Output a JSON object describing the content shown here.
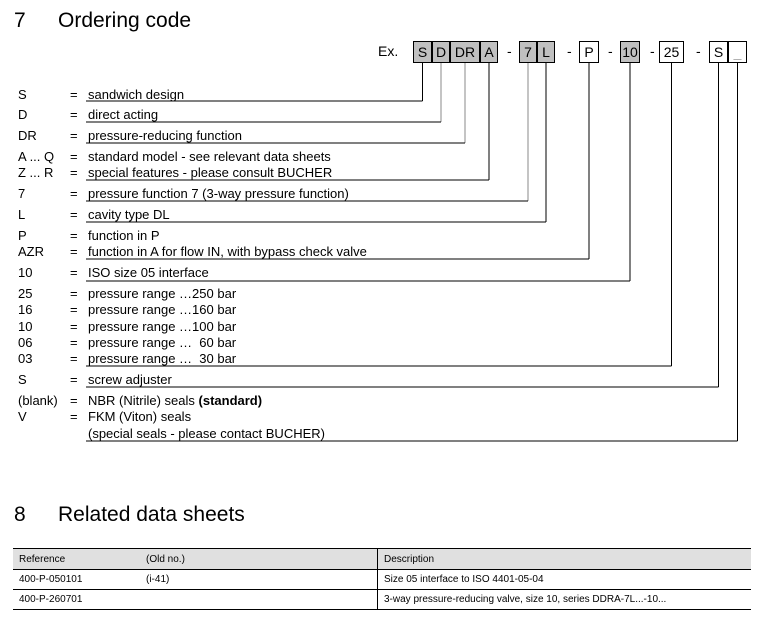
{
  "section7": {
    "number": "7",
    "title": "Ordering code"
  },
  "example": {
    "prefix": "Ex.",
    "boxes": [
      {
        "text": "S",
        "shaded": true
      },
      {
        "text": "D",
        "shaded": true
      },
      {
        "text": "DR",
        "shaded": true
      },
      {
        "text": "A",
        "shaded": true
      },
      {
        "text": "7",
        "shaded": true
      },
      {
        "text": "L",
        "shaded": true
      },
      {
        "text": "P",
        "shaded": false
      },
      {
        "text": "10",
        "shaded": true
      },
      {
        "text": "25",
        "shaded": false
      },
      {
        "text": "S",
        "shaded": false
      },
      {
        "text": "_",
        "shaded": false
      }
    ],
    "separator": "-"
  },
  "rows": [
    {
      "key": "S",
      "eq": "=",
      "desc": "sandwich design"
    },
    {
      "key": "D",
      "eq": "=",
      "desc": "direct acting"
    },
    {
      "key": "DR",
      "eq": "=",
      "desc": "pressure-reducing function"
    },
    {
      "key": "A ... Q",
      "eq": "=",
      "desc": "standard model - see relevant data sheets"
    },
    {
      "key": "Z ... R",
      "eq": "=",
      "desc": "special features - please consult BUCHER"
    },
    {
      "key": "7",
      "eq": "=",
      "desc": "pressure function 7 (3-way pressure function)"
    },
    {
      "key": "L",
      "eq": "=",
      "desc": "cavity type DL"
    },
    {
      "key": "P",
      "eq": "=",
      "desc": "function in P"
    },
    {
      "key": "AZR",
      "eq": "=",
      "desc": "function in A for flow IN, with bypass check valve"
    },
    {
      "key": "10",
      "eq": "=",
      "desc": "ISO size 05 interface"
    },
    {
      "key": "25",
      "eq": "=",
      "desc": "pressure range …250 bar"
    },
    {
      "key": "16",
      "eq": "=",
      "desc": "pressure range …160 bar"
    },
    {
      "key": "10",
      "eq": "=",
      "desc": "pressure range …100 bar"
    },
    {
      "key": "06",
      "eq": "=",
      "desc": "pressure range …  60 bar"
    },
    {
      "key": "03",
      "eq": "=",
      "desc": "pressure range …  30 bar"
    },
    {
      "key": "S",
      "eq": "=",
      "desc": "screw adjuster"
    },
    {
      "key": "(blank)",
      "eq": "=",
      "desc": "NBR (Nitrile) seals ",
      "desc_bold": "(standard)"
    },
    {
      "key": "V",
      "eq": "=",
      "desc": "FKM (Viton) seals"
    },
    {
      "key": "",
      "eq": "",
      "desc": "(special seals - please contact BUCHER)"
    }
  ],
  "section8": {
    "number": "8",
    "title": "Related data sheets"
  },
  "table": {
    "headers": [
      "Reference",
      "(Old no.)",
      "Description"
    ],
    "rows": [
      [
        "400-P-050101",
        "(i-41)",
        "Size 05 interface to ISO 4401-05-04"
      ],
      [
        "400-P-260701",
        "",
        "3-way pressure-reducing valve, size 10, series DDRA-7L...-10..."
      ]
    ]
  }
}
